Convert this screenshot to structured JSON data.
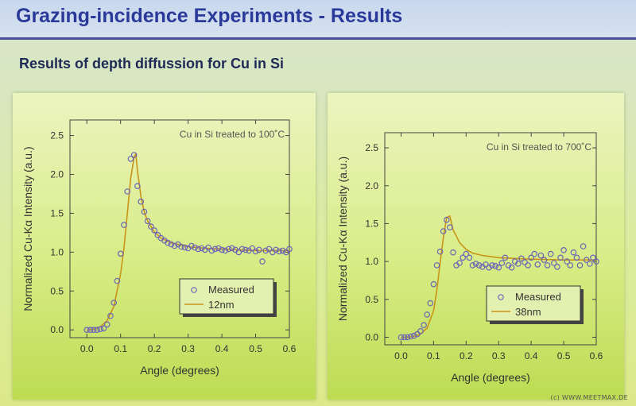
{
  "header": {
    "title": "Grazing-incidence Experiments - Results",
    "subtitle": "Results of depth diffussion for Cu in Si"
  },
  "colors": {
    "title": "#2a3a9a",
    "header_rule": "#4a4f9a",
    "measured_marker": "#6a64b8",
    "fit_line": "#c89418",
    "axis": "#444444"
  },
  "watermark": "(c) WWW.MEETMAX.DE",
  "chart_data": [
    {
      "type": "scatter",
      "annotation": "Cu in Si treated to 100˚C",
      "xlabel": "Angle (degrees)",
      "ylabel": "Normalized Cu-Kα Intensity (a.u.)",
      "xlim": [
        -0.05,
        0.6
      ],
      "ylim": [
        -0.1,
        2.7
      ],
      "xticks": [
        "0.0",
        "0.1",
        "0.2",
        "0.3",
        "0.4",
        "0.5",
        "0.6"
      ],
      "xtick_values": [
        0.0,
        0.1,
        0.2,
        0.3,
        0.4,
        0.5,
        0.6
      ],
      "yticks": [
        "0.0",
        "0.5",
        "1.0",
        "1.5",
        "2.0",
        "2.5"
      ],
      "ytick_values": [
        0.0,
        0.5,
        1.0,
        1.5,
        2.0,
        2.5
      ],
      "legend": {
        "placement": "lower-right",
        "entries": [
          "Measured",
          "12nm"
        ]
      },
      "series": [
        {
          "name": "Measured",
          "kind": "markers",
          "x": [
            0.0,
            0.01,
            0.02,
            0.03,
            0.04,
            0.05,
            0.06,
            0.07,
            0.08,
            0.09,
            0.1,
            0.11,
            0.12,
            0.13,
            0.14,
            0.15,
            0.16,
            0.17,
            0.18,
            0.19,
            0.2,
            0.21,
            0.22,
            0.23,
            0.24,
            0.25,
            0.26,
            0.27,
            0.28,
            0.29,
            0.3,
            0.31,
            0.32,
            0.33,
            0.34,
            0.35,
            0.36,
            0.37,
            0.38,
            0.39,
            0.4,
            0.41,
            0.42,
            0.43,
            0.44,
            0.45,
            0.46,
            0.47,
            0.48,
            0.49,
            0.5,
            0.51,
            0.52,
            0.53,
            0.54,
            0.55,
            0.56,
            0.57,
            0.58,
            0.59,
            0.6
          ],
          "y": [
            0.0,
            0.0,
            0.0,
            0.0,
            0.01,
            0.02,
            0.07,
            0.18,
            0.35,
            0.63,
            0.98,
            1.35,
            1.78,
            2.2,
            2.25,
            1.85,
            1.65,
            1.52,
            1.4,
            1.33,
            1.28,
            1.22,
            1.18,
            1.15,
            1.12,
            1.1,
            1.08,
            1.1,
            1.07,
            1.06,
            1.05,
            1.08,
            1.06,
            1.04,
            1.05,
            1.03,
            1.06,
            1.02,
            1.04,
            1.05,
            1.03,
            1.02,
            1.04,
            1.05,
            1.03,
            1.0,
            1.04,
            1.03,
            1.02,
            1.05,
            1.01,
            1.03,
            0.88,
            1.02,
            1.04,
            1.0,
            1.03,
            1.01,
            1.02,
            1.0,
            1.04
          ]
        },
        {
          "name": "12nm",
          "kind": "line",
          "x": [
            0.0,
            0.02,
            0.04,
            0.06,
            0.08,
            0.1,
            0.11,
            0.12,
            0.13,
            0.14,
            0.145,
            0.15,
            0.16,
            0.17,
            0.18,
            0.2,
            0.22,
            0.25,
            0.3,
            0.35,
            0.4,
            0.5,
            0.6
          ],
          "y": [
            0.0,
            0.01,
            0.04,
            0.12,
            0.3,
            0.72,
            1.05,
            1.5,
            1.95,
            2.22,
            2.27,
            2.05,
            1.72,
            1.52,
            1.4,
            1.26,
            1.18,
            1.12,
            1.07,
            1.05,
            1.04,
            1.02,
            1.02
          ]
        }
      ]
    },
    {
      "type": "scatter",
      "annotation": "Cu in Si treated to 700˚C",
      "xlabel": "Angle (degrees)",
      "ylabel": "Normalized Cu-Kα Intensity (a.u.)",
      "xlim": [
        -0.05,
        0.6
      ],
      "ylim": [
        -0.1,
        2.7
      ],
      "xticks": [
        "0.0",
        "0.1",
        "0.2",
        "0.3",
        "0.4",
        "0.5",
        "0.6"
      ],
      "xtick_values": [
        0.0,
        0.1,
        0.2,
        0.3,
        0.4,
        0.5,
        0.6
      ],
      "yticks": [
        "0.0",
        "0.5",
        "1.0",
        "1.5",
        "2.0",
        "2.5"
      ],
      "ytick_values": [
        0.0,
        0.5,
        1.0,
        1.5,
        2.0,
        2.5
      ],
      "legend": {
        "placement": "lower-right",
        "entries": [
          "Measured",
          "38nm"
        ]
      },
      "series": [
        {
          "name": "Measured",
          "kind": "markers",
          "x": [
            0.0,
            0.01,
            0.02,
            0.03,
            0.04,
            0.05,
            0.06,
            0.07,
            0.08,
            0.09,
            0.1,
            0.11,
            0.12,
            0.13,
            0.14,
            0.15,
            0.16,
            0.17,
            0.18,
            0.19,
            0.2,
            0.21,
            0.22,
            0.23,
            0.24,
            0.25,
            0.26,
            0.27,
            0.28,
            0.29,
            0.3,
            0.31,
            0.32,
            0.33,
            0.34,
            0.35,
            0.36,
            0.37,
            0.38,
            0.39,
            0.4,
            0.41,
            0.42,
            0.43,
            0.44,
            0.45,
            0.46,
            0.47,
            0.48,
            0.49,
            0.5,
            0.51,
            0.52,
            0.53,
            0.54,
            0.55,
            0.56,
            0.57,
            0.58,
            0.59,
            0.6
          ],
          "y": [
            0.0,
            0.0,
            0.0,
            0.01,
            0.02,
            0.04,
            0.08,
            0.16,
            0.3,
            0.45,
            0.7,
            0.95,
            1.13,
            1.4,
            1.55,
            1.45,
            1.12,
            0.95,
            0.98,
            1.05,
            1.1,
            1.05,
            0.95,
            0.97,
            0.95,
            0.93,
            0.96,
            0.92,
            0.95,
            0.94,
            0.92,
            0.98,
            1.05,
            0.95,
            0.92,
            1.0,
            0.97,
            1.04,
            0.99,
            0.95,
            1.05,
            1.1,
            0.96,
            1.08,
            1.02,
            0.95,
            1.1,
            0.98,
            0.93,
            1.05,
            1.15,
            1.0,
            0.95,
            1.12,
            1.05,
            0.95,
            1.2,
            1.02,
            0.97,
            1.05,
            1.0
          ]
        },
        {
          "name": "38nm",
          "kind": "line",
          "x": [
            0.0,
            0.02,
            0.04,
            0.06,
            0.08,
            0.1,
            0.11,
            0.12,
            0.13,
            0.14,
            0.15,
            0.16,
            0.18,
            0.2,
            0.22,
            0.25,
            0.3,
            0.35,
            0.4,
            0.5,
            0.6
          ],
          "y": [
            0.0,
            0.0,
            0.01,
            0.04,
            0.12,
            0.35,
            0.62,
            0.98,
            1.32,
            1.58,
            1.6,
            1.42,
            1.25,
            1.16,
            1.11,
            1.08,
            1.05,
            1.04,
            1.03,
            1.02,
            1.02
          ]
        }
      ]
    }
  ]
}
